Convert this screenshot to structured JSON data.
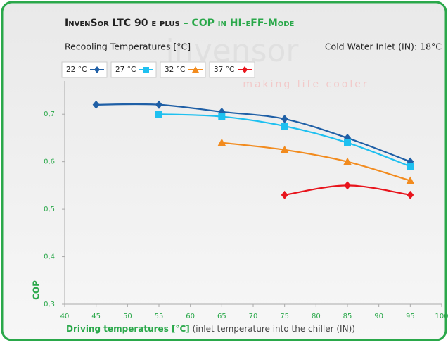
{
  "chart_data": {
    "type": "line",
    "title": "InvenSor LTC 90 e plus",
    "title_highlight": "– COP in HI-eFF-Mode",
    "subtitle": "Recooling Temperatures [°C]",
    "annotation": "Cold Water Inlet (IN): 18°C",
    "watermark": [
      "invensor",
      "making life cooler"
    ],
    "ylabel": "COP",
    "xlabel": "Driving temperatures [°C]",
    "xlabel_note": "(inlet temperature into the chiller (IN))",
    "xlim": [
      40,
      100
    ],
    "xticks": [
      40,
      45,
      50,
      55,
      60,
      65,
      70,
      75,
      80,
      85,
      90,
      95,
      100
    ],
    "ylim": [
      0.3,
      0.77
    ],
    "yticks": [
      {
        "value": 0.3,
        "label": "0,3"
      },
      {
        "value": 0.4,
        "label": "0,4"
      },
      {
        "value": 0.5,
        "label": "0,5"
      },
      {
        "value": 0.6,
        "label": "0,6"
      },
      {
        "value": 0.7,
        "label": "0,7"
      }
    ],
    "grid": false,
    "legend": "top-left",
    "series": [
      {
        "name": "22 °C",
        "color": "#1f5fa6",
        "marker": "diamond",
        "x": [
          45,
          55,
          65,
          75,
          85,
          95
        ],
        "values": [
          0.72,
          0.72,
          0.705,
          0.69,
          0.65,
          0.6
        ]
      },
      {
        "name": "27 °C",
        "color": "#1ec0f0",
        "marker": "square",
        "x": [
          55,
          65,
          75,
          85,
          95
        ],
        "values": [
          0.7,
          0.695,
          0.675,
          0.64,
          0.59
        ]
      },
      {
        "name": "32 °C",
        "color": "#f28b1e",
        "marker": "triangle",
        "x": [
          65,
          75,
          85,
          95
        ],
        "values": [
          0.64,
          0.625,
          0.6,
          0.56
        ]
      },
      {
        "name": "37 °C",
        "color": "#e8141c",
        "marker": "diamond",
        "x": [
          75,
          85,
          95
        ],
        "values": [
          0.53,
          0.55,
          0.53
        ]
      }
    ]
  }
}
